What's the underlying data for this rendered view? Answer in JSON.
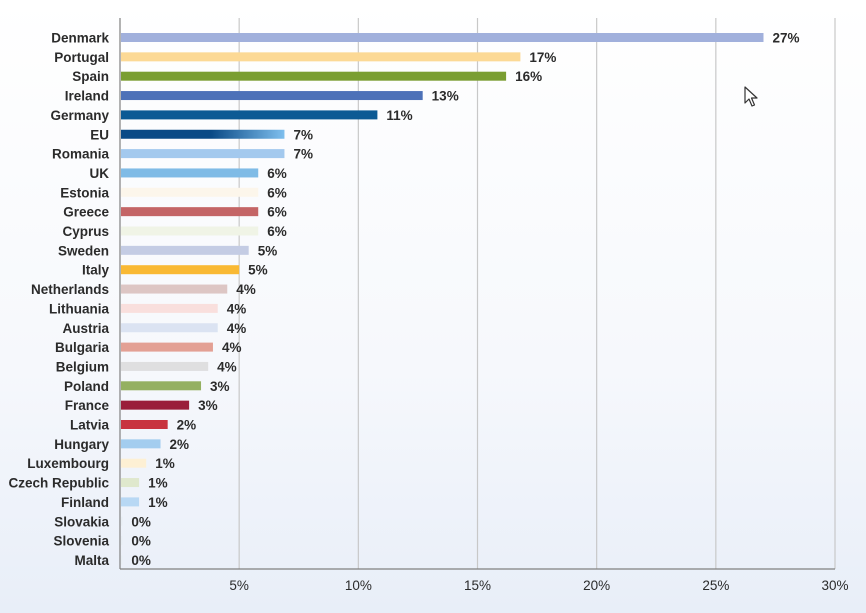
{
  "chart_data": {
    "type": "bar",
    "orientation": "horizontal",
    "categories": [
      "Denmark",
      "Portugal",
      "Spain",
      "Ireland",
      "Germany",
      "EU",
      "Romania",
      "UK",
      "Estonia",
      "Greece",
      "Cyprus",
      "Sweden",
      "Italy",
      "Netherlands",
      "Lithuania",
      "Austria",
      "Bulgaria",
      "Belgium",
      "Poland",
      "France",
      "Latvia",
      "Hungary",
      "Luxembourg",
      "Czech Republic",
      "Finland",
      "Slovakia",
      "Slovenia",
      "Malta"
    ],
    "values": [
      27.0,
      16.8,
      16.2,
      12.7,
      10.8,
      6.9,
      6.9,
      5.8,
      5.8,
      5.8,
      5.8,
      5.4,
      5.0,
      4.5,
      4.1,
      4.1,
      3.9,
      3.7,
      3.4,
      2.9,
      2.0,
      1.7,
      1.1,
      0.8,
      0.8,
      0.1,
      0.1,
      0.1
    ],
    "value_labels": [
      "27%",
      "17%",
      "16%",
      "13%",
      "11%",
      "7%",
      "7%",
      "6%",
      "6%",
      "6%",
      "6%",
      "5%",
      "5%",
      "4%",
      "4%",
      "4%",
      "4%",
      "4%",
      "3%",
      "3%",
      "2%",
      "2%",
      "1%",
      "1%",
      "1%",
      "0%",
      "0%",
      "0%"
    ],
    "bar_colors": [
      "#a1b0dc",
      "#fcd995",
      "#7a9e32",
      "#4d71b8",
      "#0c5a94",
      "#1a5d99",
      "#a3c9ee",
      "#7fbbe6",
      "#fcf6eb",
      "#c46566",
      "#f0f4e6",
      "#c4cce4",
      "#f9b934",
      "#ddc6c4",
      "#f9dfdd",
      "#dbe3f2",
      "#e3a094",
      "#dfdfe0",
      "#94b061",
      "#9a1e3a",
      "#c8343f",
      "#a3cdef",
      "#fdf0d4",
      "#dfe8cd",
      "#b8d8f4",
      "#e8eef4",
      "#e8eef4",
      "#e8eef4"
    ],
    "eu_gradient": [
      "#0a4a86",
      "#7fbfee"
    ],
    "xlim": [
      0,
      30
    ],
    "xticks": [
      5,
      10,
      15,
      20,
      25,
      30
    ],
    "xtick_labels": [
      "5%",
      "10%",
      "15%",
      "20%",
      "25%",
      "30%"
    ],
    "grid": "vertical",
    "gridline_color": "#c8c8c8",
    "axis_color": "#808080",
    "title": "",
    "xlabel": "",
    "ylabel": ""
  },
  "icons": {
    "cursor": "mouse-pointer-icon"
  }
}
